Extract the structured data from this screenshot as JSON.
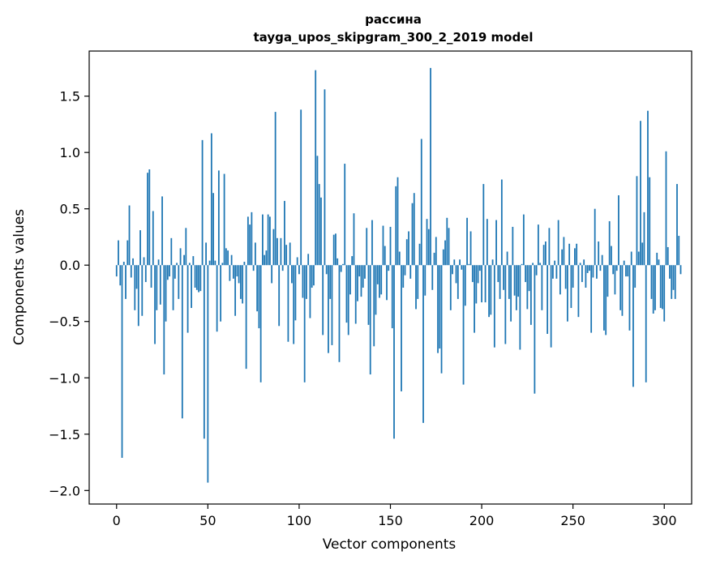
{
  "chart_data": {
    "type": "bar",
    "title": "рассина",
    "subtitle": "tayga_upos_skipgram_300_2_2019 model",
    "xlabel": "Vector components",
    "ylabel": "Components values",
    "xlim": [
      -15,
      315
    ],
    "ylim": [
      -2.12,
      1.9
    ],
    "xticks": [
      0,
      50,
      100,
      150,
      200,
      250,
      300
    ],
    "yticks": [
      -2.0,
      -1.5,
      -1.0,
      -0.5,
      0.0,
      0.5,
      1.0,
      1.5
    ],
    "ytick_labels": [
      "−2.0",
      "−1.5",
      "−1.0",
      "−0.5",
      "0.0",
      "0.5",
      "1.0",
      "1.5"
    ],
    "bar_color": "#1f77b4",
    "grid": false,
    "values": [
      -0.1,
      0.22,
      -0.18,
      -1.71,
      0.03,
      -0.3,
      0.22,
      0.53,
      -0.11,
      0.06,
      -0.4,
      -0.21,
      -0.54,
      0.31,
      -0.45,
      0.07,
      -0.15,
      0.82,
      0.85,
      -0.2,
      0.48,
      -0.7,
      -0.4,
      0.05,
      -0.35,
      0.61,
      -0.97,
      -0.5,
      -0.13,
      -0.1,
      0.24,
      -0.4,
      -0.12,
      0.02,
      -0.3,
      0.15,
      -1.36,
      0.09,
      0.33,
      -0.6,
      0.02,
      -0.38,
      0.08,
      -0.2,
      -0.22,
      -0.24,
      -0.23,
      1.11,
      -1.54,
      0.2,
      -1.93,
      0.04,
      1.17,
      0.64,
      0.04,
      -0.59,
      0.84,
      -0.5,
      0.02,
      0.81,
      0.15,
      0.13,
      -0.14,
      0.09,
      -0.12,
      -0.45,
      -0.1,
      -0.16,
      -0.3,
      -0.34,
      0.03,
      -0.92,
      0.43,
      0.36,
      0.47,
      -0.05,
      0.2,
      -0.41,
      -0.56,
      -1.04,
      0.45,
      0.09,
      0.13,
      0.45,
      0.43,
      -0.16,
      0.32,
      1.36,
      0.24,
      -0.54,
      0.24,
      -0.05,
      0.57,
      0.18,
      -0.68,
      0.2,
      -0.16,
      -0.7,
      -0.49,
      0.07,
      -0.08,
      1.38,
      -0.29,
      -1.04,
      -0.3,
      0.1,
      -0.47,
      -0.2,
      -0.18,
      1.73,
      0.97,
      0.72,
      0.6,
      -0.62,
      1.56,
      -0.08,
      -0.78,
      -0.3,
      -0.71,
      0.27,
      0.28,
      0.06,
      -0.86,
      -0.06,
      0.01,
      0.9,
      -0.51,
      -0.62,
      -0.26,
      0.08,
      0.46,
      -0.52,
      -0.32,
      -0.1,
      -0.28,
      -0.2,
      -0.12,
      0.33,
      -0.53,
      -0.97,
      0.4,
      -0.72,
      -0.44,
      -0.17,
      -0.29,
      -0.26,
      0.35,
      0.17,
      -0.31,
      -0.05,
      0.34,
      -0.56,
      -1.54,
      0.7,
      0.78,
      0.12,
      -1.12,
      -0.2,
      -0.09,
      0.23,
      0.3,
      -0.12,
      0.55,
      0.64,
      -0.39,
      -0.3,
      0.19,
      1.12,
      -1.4,
      -0.27,
      0.41,
      0.32,
      1.75,
      -0.22,
      0.11,
      0.25,
      -0.78,
      -0.74,
      -0.96,
      0.14,
      0.22,
      0.42,
      0.33,
      -0.4,
      -0.08,
      0.05,
      -0.16,
      -0.3,
      0.05,
      -0.04,
      -1.06,
      -0.36,
      0.42,
      0.01,
      0.3,
      -0.15,
      -0.6,
      -0.34,
      -0.16,
      -0.05,
      -0.33,
      0.72,
      -0.33,
      0.41,
      -0.46,
      -0.44,
      0.05,
      -0.73,
      0.4,
      -0.15,
      -0.3,
      0.76,
      -0.22,
      -0.7,
      0.12,
      -0.3,
      -0.5,
      0.34,
      -0.27,
      -0.4,
      -0.28,
      -0.75,
      0.01,
      0.45,
      -0.15,
      -0.39,
      -0.23,
      -0.53,
      0.02,
      -1.14,
      -0.09,
      0.36,
      0.02,
      -0.4,
      0.18,
      0.21,
      -0.61,
      0.33,
      -0.73,
      -0.12,
      0.04,
      -0.12,
      0.4,
      -0.26,
      0.14,
      0.25,
      -0.21,
      -0.5,
      0.19,
      -0.38,
      -0.2,
      0.15,
      0.19,
      -0.46,
      0.02,
      -0.15,
      0.05,
      -0.2,
      -0.07,
      -0.05,
      -0.6,
      -0.11,
      0.5,
      -0.12,
      0.21,
      -0.05,
      0.09,
      -0.58,
      -0.62,
      -0.28,
      0.39,
      0.17,
      -0.08,
      -0.26,
      -0.05,
      0.62,
      -0.4,
      -0.45,
      0.04,
      -0.1,
      -0.1,
      -0.58,
      0.12,
      -1.08,
      -0.2,
      0.79,
      0.12,
      1.28,
      0.2,
      0.47,
      -1.04,
      1.37,
      0.78,
      -0.3,
      -0.43,
      -0.4,
      0.11,
      0.05,
      -0.38,
      -0.39,
      -0.5,
      1.01,
      0.16,
      -0.12,
      -0.3,
      -0.22,
      -0.3,
      0.72,
      0.26,
      -0.08
    ]
  }
}
